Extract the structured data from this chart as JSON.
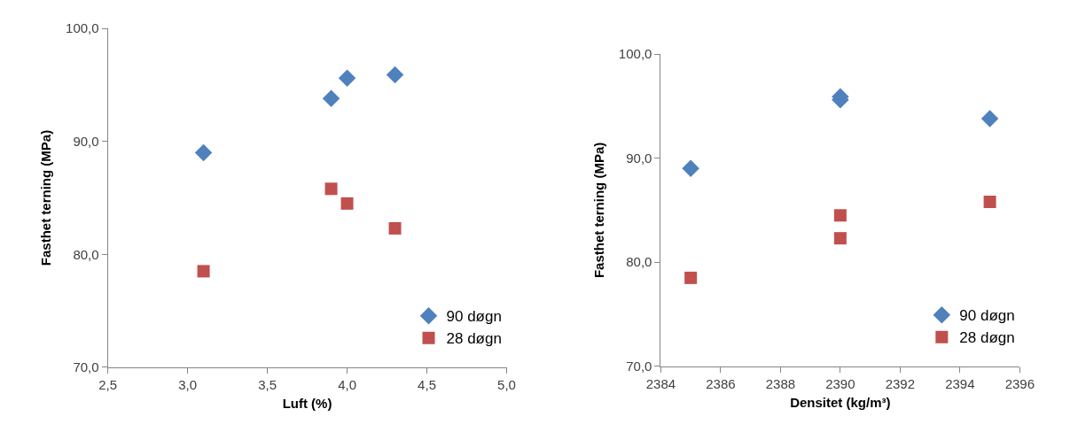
{
  "chart_data": [
    {
      "type": "scatter",
      "xlabel": "Luft (%)",
      "ylabel": "Fasthet terning (MPa)",
      "xlim": [
        2.5,
        5.0
      ],
      "xticks": [
        {
          "value": 2.5,
          "label": "2,5"
        },
        {
          "value": 3.0,
          "label": "3,0"
        },
        {
          "value": 3.5,
          "label": "3,5"
        },
        {
          "value": 4.0,
          "label": "4,0"
        },
        {
          "value": 4.5,
          "label": "4,5"
        },
        {
          "value": 5.0,
          "label": "5,0"
        }
      ],
      "ylim": [
        70,
        100
      ],
      "yticks": [
        {
          "value": 70,
          "label": "70,0"
        },
        {
          "value": 80,
          "label": "80,0"
        },
        {
          "value": 90,
          "label": "90,0"
        },
        {
          "value": 100,
          "label": "100,0"
        }
      ],
      "legend": "bottom right",
      "series": [
        {
          "name": "90 døgn",
          "color": "#4f81bd",
          "marker": "diamond",
          "x": [
            3.1,
            3.9,
            4.0,
            4.3
          ],
          "values": [
            89.0,
            93.8,
            95.6,
            95.9
          ]
        },
        {
          "name": "28 døgn",
          "color": "#c0504d",
          "marker": "square",
          "x": [
            3.1,
            3.9,
            4.0,
            4.3
          ],
          "values": [
            78.5,
            85.8,
            84.5,
            82.3
          ]
        }
      ]
    },
    {
      "type": "scatter",
      "xlabel": "Densitet (kg/m³)",
      "ylabel": "Fasthet terning (MPa)",
      "xlim": [
        2384,
        2396
      ],
      "xticks": [
        2384,
        2386,
        2388,
        2390,
        2392,
        2394,
        2396
      ],
      "ylim": [
        70,
        100
      ],
      "yticks": [
        {
          "value": 70,
          "label": "70,0"
        },
        {
          "value": 80,
          "label": "80,0"
        },
        {
          "value": 90,
          "label": "90,0"
        },
        {
          "value": 100,
          "label": "100,0"
        }
      ],
      "legend": "bottom right",
      "series": [
        {
          "name": "90 døgn",
          "color": "#4f81bd",
          "marker": "diamond",
          "x": [
            2385,
            2395,
            2390,
            2390
          ],
          "values": [
            89.0,
            93.8,
            95.6,
            95.9
          ]
        },
        {
          "name": "28 døgn",
          "color": "#c0504d",
          "marker": "square",
          "x": [
            2385,
            2395,
            2390,
            2390
          ],
          "values": [
            78.5,
            85.8,
            84.5,
            82.3
          ]
        }
      ]
    }
  ]
}
